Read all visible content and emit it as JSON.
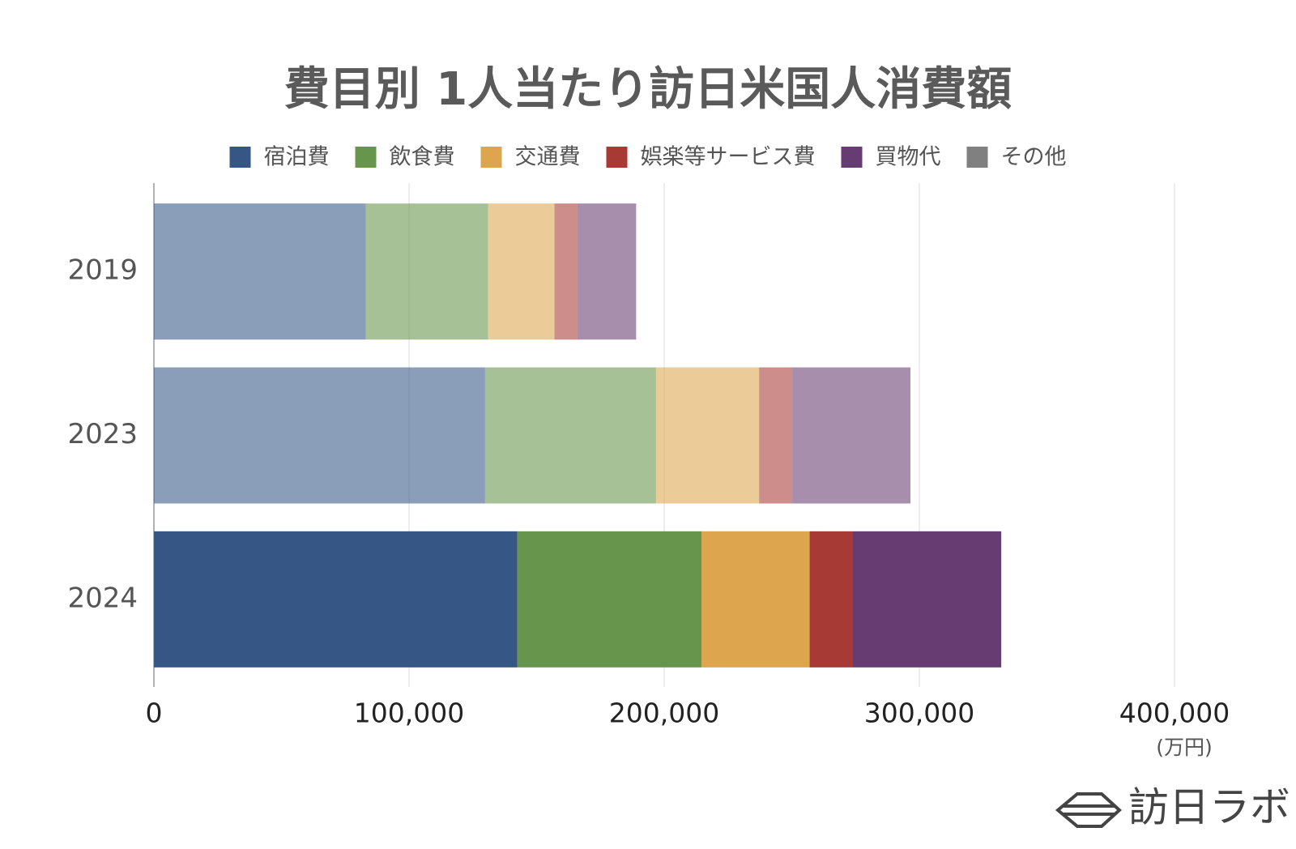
{
  "chart_data": {
    "type": "stacked-barh",
    "title": "費目別 1人当たり訪日米国人消費額",
    "categories": [
      "2019",
      "2023",
      "2024"
    ],
    "series": [
      {
        "name": "宿泊費",
        "color": "#365686",
        "values": [
          83000,
          129800,
          142400
        ]
      },
      {
        "name": "飲食費",
        "color": "#67954c",
        "values": [
          48000,
          67000,
          72200
        ]
      },
      {
        "name": "交通費",
        "color": "#dca54e",
        "values": [
          26000,
          40400,
          42400
        ]
      },
      {
        "name": "娯楽等サービス費",
        "color": "#a83a35",
        "values": [
          9000,
          13000,
          16800
        ]
      },
      {
        "name": "買物代",
        "color": "#673c72",
        "values": [
          23000,
          46300,
          58300
        ]
      },
      {
        "name": "その他",
        "color": "#808080",
        "values": [
          0,
          0,
          0
        ]
      }
    ],
    "xlim": [
      0,
      400000
    ],
    "xticks": [
      0,
      {
        "value": 100000,
        "label": "100,000"
      },
      {
        "value": 200000,
        "label": "200,000"
      },
      {
        "value": 300000,
        "label": "300,000"
      },
      {
        "value": 400000,
        "label": "400,000"
      }
    ],
    "x_unit": "(万円)",
    "grid": true,
    "legend": "top",
    "watermark": "訪日ラボ"
  }
}
